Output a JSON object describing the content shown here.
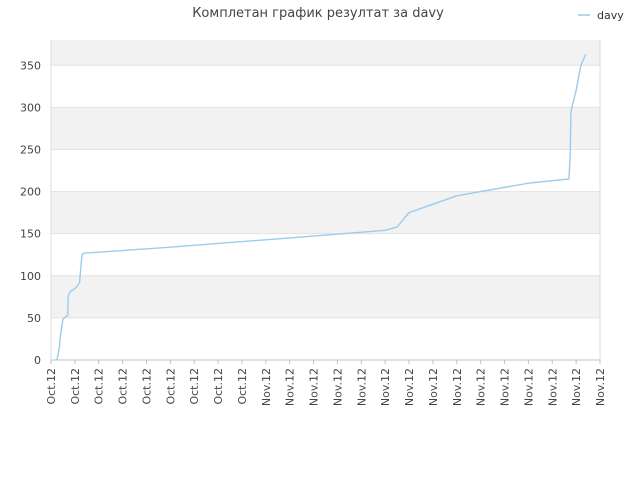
{
  "chart_data": {
    "type": "line",
    "title": "Комплетан график резултат за davy",
    "xlabel": "",
    "ylabel": "",
    "ylim": [
      0,
      380
    ],
    "y_ticks": [
      0,
      50,
      100,
      150,
      200,
      250,
      300,
      350
    ],
    "x_tick_labels": [
      "Oct.12",
      "Oct.12",
      "Oct.12",
      "Oct.12",
      "Oct.12",
      "Oct.12",
      "Oct.12",
      "Oct.12",
      "Oct.12",
      "Nov.12",
      "Nov.12",
      "Nov.12",
      "Nov.12",
      "Nov.12",
      "Nov.12",
      "Nov.12",
      "Nov.12",
      "Nov.12",
      "Nov.12",
      "Nov.12",
      "Nov.12",
      "Nov.12",
      "Nov.12",
      "Nov.12"
    ],
    "xlim": [
      0,
      23
    ],
    "grid": true,
    "band_colors": [
      "#f2f2f2",
      "#ffffff"
    ],
    "legend_position": "top-right",
    "series": [
      {
        "name": "davy",
        "color": "#99ccee",
        "x": [
          0.25,
          0.35,
          0.4,
          0.5,
          0.55,
          0.7,
          0.72,
          0.78,
          0.85,
          0.95,
          1.05,
          1.2,
          1.22,
          1.3,
          1.35,
          1.37,
          2.0,
          5.0,
          10.0,
          14.0,
          14.5,
          15.0,
          16.0,
          17.0,
          18.0,
          20.0,
          21.7,
          21.75,
          21.78,
          21.82,
          22.0,
          22.2,
          22.4
        ],
        "values": [
          0,
          15,
          30,
          48,
          50,
          53,
          75,
          80,
          82,
          84,
          86,
          92,
          100,
          125,
          126,
          127,
          128,
          134,
          145,
          154,
          158,
          175,
          185,
          195,
          200,
          210,
          215,
          245,
          293,
          300,
          320,
          350,
          363
        ]
      }
    ]
  }
}
